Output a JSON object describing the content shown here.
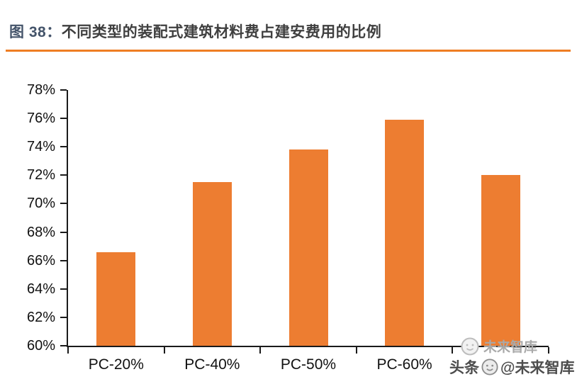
{
  "header": {
    "figure_label": "图 38：",
    "title": "不同类型的装配式建筑材料费占建安费用的比例"
  },
  "colors": {
    "bar": "#ED7D31",
    "divider": "#EE7D23",
    "figure_label": "#44546A",
    "title_text": "#3F3F3F",
    "axis": "#1A1A1A",
    "watermark_main": "#4D4D4D",
    "watermark_ghost": "#A9A9A9"
  },
  "chart_data": {
    "type": "bar",
    "title": "不同类型的装配式建筑材料费占建安费用的比例",
    "categories": [
      "PC-20%",
      "PC-40%",
      "PC-50%",
      "PC-60%",
      ""
    ],
    "values": [
      66.6,
      71.5,
      73.8,
      75.9,
      72.0
    ],
    "xlabel": "",
    "ylabel": "",
    "ylim": [
      60,
      78
    ],
    "ytick_step": 2,
    "ytick_labels": [
      "60%",
      "62%",
      "64%",
      "66%",
      "68%",
      "70%",
      "72%",
      "74%",
      "76%",
      "78%"
    ],
    "grid": false,
    "legend": null,
    "bar_color": "#ED7D31"
  },
  "watermark": {
    "ghost_text": "未来智库",
    "prefix": "头条",
    "handle": "@未来智库"
  }
}
